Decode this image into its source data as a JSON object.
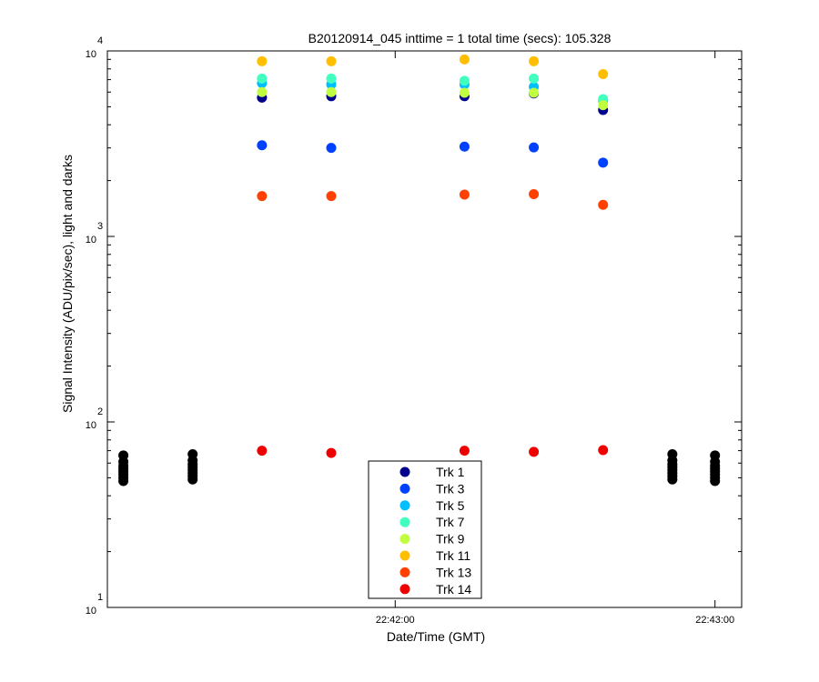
{
  "chart_data": {
    "type": "scatter",
    "title": "B20120914_045 inttime = 1 total time (secs): 105.328",
    "xlabel": "Date/Time (GMT)",
    "ylabel": "Signal Intensity (ADU/pix/sec), light and darks",
    "yscale": "log",
    "ylim": [
      10,
      10000
    ],
    "xlim": [
      "22:41:06",
      "22:43:05"
    ],
    "x_ticks": [
      "22:42:00",
      "22:43:00"
    ],
    "y_ticks": [
      {
        "base": "10",
        "exp": "1"
      },
      {
        "base": "10",
        "exp": "2"
      },
      {
        "base": "10",
        "exp": "3"
      },
      {
        "base": "10",
        "exp": "4"
      }
    ],
    "grid": false,
    "legend_position": "bottom-center",
    "series": [
      {
        "name": "Trk 1",
        "color": "#00008f",
        "points": [
          [
            "22:41:35",
            5600
          ],
          [
            "22:41:48",
            5700
          ],
          [
            "22:42:13",
            5700
          ],
          [
            "22:42:26",
            5900
          ],
          [
            "22:42:39",
            4800
          ]
        ]
      },
      {
        "name": "Trk 3",
        "color": "#0040ff",
        "points": [
          [
            "22:41:35",
            3100
          ],
          [
            "22:41:48",
            3000
          ],
          [
            "22:42:13",
            3050
          ],
          [
            "22:42:26",
            3020
          ],
          [
            "22:42:39",
            2500
          ]
        ]
      },
      {
        "name": "Trk 5",
        "color": "#00bfff",
        "points": [
          [
            "22:41:35",
            6700
          ],
          [
            "22:41:48",
            6600
          ],
          [
            "22:42:13",
            6600
          ],
          [
            "22:42:26",
            6400
          ],
          [
            "22:42:39",
            5400
          ]
        ]
      },
      {
        "name": "Trk 7",
        "color": "#40ffbf",
        "points": [
          [
            "22:41:35",
            7100
          ],
          [
            "22:41:48",
            7100
          ],
          [
            "22:42:13",
            6900
          ],
          [
            "22:42:26",
            7100
          ],
          [
            "22:42:39",
            5500
          ]
        ]
      },
      {
        "name": "Trk 9",
        "color": "#bfff40",
        "points": [
          [
            "22:41:35",
            6000
          ],
          [
            "22:41:48",
            6000
          ],
          [
            "22:42:13",
            5950
          ],
          [
            "22:42:26",
            5950
          ],
          [
            "22:42:39",
            5100
          ]
        ]
      },
      {
        "name": "Trk 11",
        "color": "#ffbf00",
        "points": [
          [
            "22:41:35",
            8800
          ],
          [
            "22:41:48",
            8800
          ],
          [
            "22:42:13",
            9000
          ],
          [
            "22:42:26",
            8800
          ],
          [
            "22:42:39",
            7500
          ]
        ]
      },
      {
        "name": "Trk 13",
        "color": "#ff4000",
        "points": [
          [
            "22:41:35",
            1650
          ],
          [
            "22:41:48",
            1650
          ],
          [
            "22:42:13",
            1680
          ],
          [
            "22:42:26",
            1690
          ],
          [
            "22:42:39",
            1480
          ]
        ]
      },
      {
        "name": "Trk 14",
        "color": "#ef0000",
        "points": [
          [
            "22:41:35",
            70
          ],
          [
            "22:41:48",
            68
          ],
          [
            "22:42:13",
            70
          ],
          [
            "22:42:26",
            69
          ],
          [
            "22:42:39",
            70.5
          ]
        ]
      }
    ],
    "darks": {
      "color": "#000000",
      "points": [
        [
          "22:41:09",
          48
        ],
        [
          "22:41:09",
          50
        ],
        [
          "22:41:09",
          52
        ],
        [
          "22:41:09",
          54
        ],
        [
          "22:41:09",
          56
        ],
        [
          "22:41:09",
          58
        ],
        [
          "22:41:09",
          61
        ],
        [
          "22:41:09",
          66
        ],
        [
          "22:41:22",
          49
        ],
        [
          "22:41:22",
          51
        ],
        [
          "22:41:22",
          53
        ],
        [
          "22:41:22",
          55
        ],
        [
          "22:41:22",
          57
        ],
        [
          "22:41:22",
          59
        ],
        [
          "22:41:22",
          62
        ],
        [
          "22:41:22",
          67
        ],
        [
          "22:42:52",
          49
        ],
        [
          "22:42:52",
          51
        ],
        [
          "22:42:52",
          53
        ],
        [
          "22:42:52",
          55
        ],
        [
          "22:42:52",
          57
        ],
        [
          "22:42:52",
          59
        ],
        [
          "22:42:52",
          62
        ],
        [
          "22:42:52",
          67
        ],
        [
          "22:43:00",
          48
        ],
        [
          "22:43:00",
          50
        ],
        [
          "22:43:00",
          52
        ],
        [
          "22:43:00",
          54
        ],
        [
          "22:43:00",
          56
        ],
        [
          "22:43:00",
          58
        ],
        [
          "22:43:00",
          61
        ],
        [
          "22:43:00",
          66
        ]
      ]
    }
  }
}
